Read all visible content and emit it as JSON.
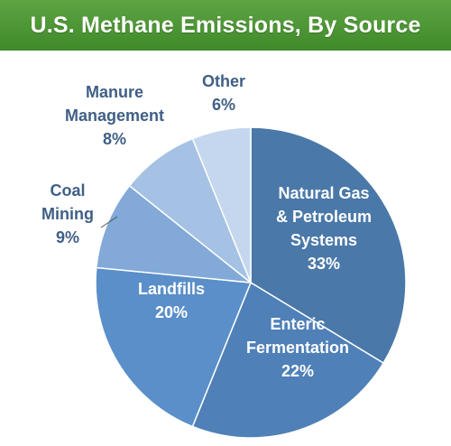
{
  "header": {
    "title": "U.S. Methane Emissions, By Source"
  },
  "chart_data": {
    "type": "pie",
    "title": "U.S. Methane Emissions, By Source",
    "unit": "%",
    "slices": [
      {
        "lines": [
          "Natural Gas",
          "& Petroleum",
          "Systems"
        ],
        "value": 33,
        "pct_label": "33%",
        "color": "#4a78a8"
      },
      {
        "lines": [
          "Enteric",
          "Fermentation"
        ],
        "value": 22,
        "pct_label": "22%",
        "color": "#4f80b7"
      },
      {
        "lines": [
          "Landfills"
        ],
        "value": 20,
        "pct_label": "20%",
        "color": "#5a8fc9"
      },
      {
        "lines": [
          "Coal",
          "Mining"
        ],
        "value": 9,
        "pct_label": "9%",
        "color": "#82a9d7"
      },
      {
        "lines": [
          "Manure",
          "Management"
        ],
        "value": 8,
        "pct_label": "8%",
        "color": "#a5c1e3"
      },
      {
        "lines": [
          "Other"
        ],
        "value": 6,
        "pct_label": "6%",
        "color": "#c4d7ee"
      }
    ]
  },
  "colors": {
    "header_green": "#4a9634",
    "outside_label": "#3f5f86",
    "inside_label": "#ffffff"
  }
}
